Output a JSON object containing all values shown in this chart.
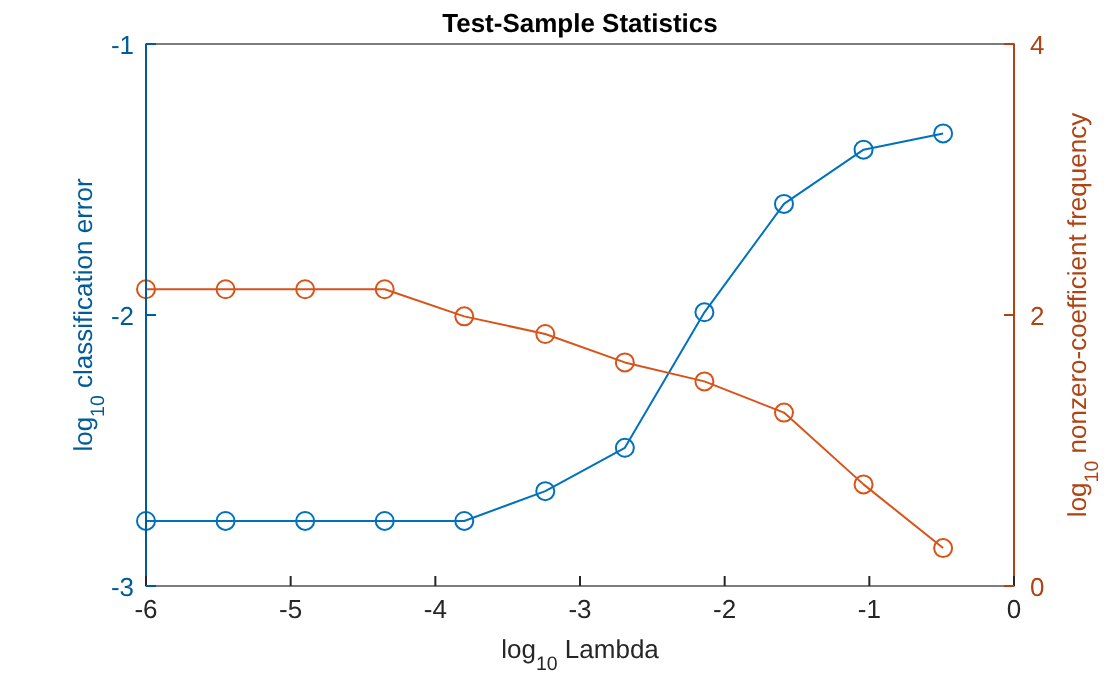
{
  "chart_data": {
    "type": "line",
    "title": "Test-Sample Statistics",
    "xlabel": "log$_{10}$ Lambda",
    "ylabel": "log$_{10}$ classification  error",
    "y2label": "log$_{10}$ nonzero-coefficient  frequency",
    "x": [
      -6,
      -5.45,
      -4.9,
      -4.35,
      -3.8,
      -3.24,
      -2.69,
      -2.14,
      -1.59,
      -1.04,
      -0.49
    ],
    "xlim": [
      -6,
      0
    ],
    "xticks": [
      -6,
      -5,
      -4,
      -3,
      -2,
      -1,
      0
    ],
    "ylim": [
      -3,
      -1
    ],
    "yticks": [
      -3,
      -2,
      -1
    ],
    "y2lim": [
      0,
      4
    ],
    "y2ticks": [
      0,
      2,
      4
    ],
    "marker": "circle",
    "line_style": "solid",
    "grid": false,
    "series": [
      {
        "color": "#0072bd",
        "values": [
          -2.76,
          -2.76,
          -2.76,
          -2.76,
          -2.76,
          -2.65,
          -2.49,
          -1.99,
          -1.59,
          -1.39,
          -1.33
        ]
      },
      {
        "color": "#d95319",
        "axis": "y2",
        "values": [
          2.19,
          2.19,
          2.19,
          2.19,
          1.99,
          1.86,
          1.65,
          1.51,
          1.28,
          0.75,
          0.28
        ]
      }
    ]
  }
}
